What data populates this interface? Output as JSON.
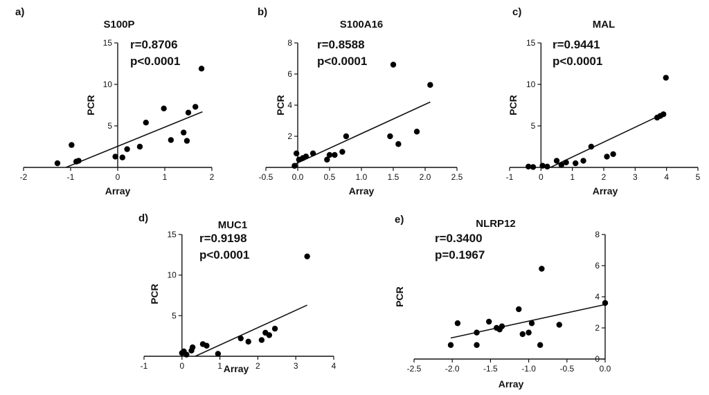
{
  "chart_data": [
    {
      "panel": "a)",
      "type": "scatter",
      "title": "S100P",
      "xlabel": "Array",
      "ylabel": "PCR",
      "annotation": [
        "r=0.8706",
        "p<0.0001"
      ],
      "xlim": [
        -2,
        2
      ],
      "ylim": [
        0,
        15
      ],
      "xticks": [
        -2,
        -1,
        0,
        1,
        2
      ],
      "yticks": [
        5,
        10,
        15
      ],
      "xtick_labels": [
        "-2",
        "-1",
        "0",
        "1",
        "2"
      ],
      "ytick_labels": [
        "5",
        "10",
        "15"
      ],
      "points": [
        [
          -1.28,
          0.5
        ],
        [
          -0.98,
          2.7
        ],
        [
          -0.88,
          0.7
        ],
        [
          -0.83,
          0.8
        ],
        [
          -0.05,
          1.3
        ],
        [
          0.1,
          1.2
        ],
        [
          0.2,
          2.2
        ],
        [
          0.47,
          2.5
        ],
        [
          0.6,
          5.4
        ],
        [
          0.98,
          7.1
        ],
        [
          1.13,
          3.3
        ],
        [
          1.4,
          4.2
        ],
        [
          1.47,
          3.2
        ],
        [
          1.5,
          6.6
        ],
        [
          1.65,
          7.3
        ],
        [
          1.78,
          11.9
        ]
      ],
      "fit_line": [
        [
          -1.1,
          0
        ],
        [
          1.8,
          6.7
        ]
      ]
    },
    {
      "panel": "b)",
      "type": "scatter",
      "title": "S100A16",
      "xlabel": "Array",
      "ylabel": "PCR",
      "annotation": [
        "r=0.8588",
        "p<0.0001"
      ],
      "xlim": [
        -0.5,
        2.5
      ],
      "ylim": [
        0,
        8
      ],
      "xticks": [
        -0.5,
        0,
        0.5,
        1,
        1.5,
        2,
        2.5
      ],
      "yticks": [
        2,
        4,
        6,
        8
      ],
      "xtick_labels": [
        "-0.5",
        "0.0",
        "0.5",
        "1.0",
        "1.5",
        "2.0",
        "2.5"
      ],
      "ytick_labels": [
        "2",
        "4",
        "6",
        "8"
      ],
      "points": [
        [
          -0.05,
          0.1
        ],
        [
          -0.02,
          0.9
        ],
        [
          0.02,
          0.5
        ],
        [
          0.08,
          0.6
        ],
        [
          0.13,
          0.7
        ],
        [
          0.24,
          0.9
        ],
        [
          0.46,
          0.5
        ],
        [
          0.5,
          0.8
        ],
        [
          0.58,
          0.8
        ],
        [
          0.7,
          1.0
        ],
        [
          0.76,
          2.0
        ],
        [
          1.45,
          2.0
        ],
        [
          1.5,
          6.6
        ],
        [
          1.58,
          1.5
        ],
        [
          1.87,
          2.3
        ],
        [
          2.08,
          5.3
        ]
      ],
      "fit_line": [
        [
          -0.05,
          0.2
        ],
        [
          2.08,
          4.2
        ]
      ]
    },
    {
      "panel": "c)",
      "type": "scatter",
      "title": "MAL",
      "xlabel": "Array",
      "ylabel": "PCR",
      "annotation": [
        "r=0.9441",
        "p<0.0001"
      ],
      "xlim": [
        -1,
        5
      ],
      "ylim": [
        0,
        15
      ],
      "xticks": [
        -1,
        0,
        1,
        2,
        3,
        4,
        5
      ],
      "yticks": [
        5,
        10,
        15
      ],
      "xtick_labels": [
        "-1",
        "0",
        "1",
        "2",
        "3",
        "4",
        "5"
      ],
      "ytick_labels": [
        "5",
        "10",
        "15"
      ],
      "points": [
        [
          -0.4,
          0.1
        ],
        [
          -0.25,
          0.05
        ],
        [
          0.05,
          0.2
        ],
        [
          0.2,
          0.1
        ],
        [
          0.5,
          0.8
        ],
        [
          0.65,
          0.3
        ],
        [
          0.8,
          0.6
        ],
        [
          1.1,
          0.5
        ],
        [
          1.35,
          0.8
        ],
        [
          1.6,
          2.5
        ],
        [
          2.1,
          1.3
        ],
        [
          2.3,
          1.6
        ],
        [
          3.7,
          6.0
        ],
        [
          3.8,
          6.2
        ],
        [
          3.9,
          6.4
        ],
        [
          3.98,
          10.8
        ]
      ],
      "fit_line": [
        [
          0.3,
          0
        ],
        [
          3.98,
          6.6
        ]
      ]
    },
    {
      "panel": "d)",
      "type": "scatter",
      "title": "MUC1",
      "xlabel": "Array",
      "ylabel": "PCR",
      "annotation": [
        "r=0.9198",
        "p<0.0001"
      ],
      "xlim": [
        -1,
        4
      ],
      "ylim": [
        0,
        15
      ],
      "xticks": [
        -1,
        0,
        1,
        2,
        3,
        4
      ],
      "yticks": [
        5,
        10,
        15
      ],
      "xtick_labels": [
        "-1",
        "0",
        "1",
        "2",
        "3",
        "4"
      ],
      "ytick_labels": [
        "5",
        "10",
        "15"
      ],
      "points": [
        [
          0.0,
          0.4
        ],
        [
          0.05,
          0.6
        ],
        [
          0.12,
          0.2
        ],
        [
          0.25,
          0.7
        ],
        [
          0.28,
          1.1
        ],
        [
          0.55,
          1.5
        ],
        [
          0.65,
          1.3
        ],
        [
          0.95,
          0.3
        ],
        [
          1.55,
          2.2
        ],
        [
          1.75,
          1.8
        ],
        [
          2.1,
          2.0
        ],
        [
          2.2,
          2.9
        ],
        [
          2.3,
          2.6
        ],
        [
          2.45,
          3.4
        ],
        [
          3.3,
          12.3
        ]
      ],
      "fit_line": [
        [
          0.35,
          0
        ],
        [
          3.3,
          6.3
        ]
      ]
    },
    {
      "panel": "e)",
      "type": "scatter",
      "title": "NLRP12",
      "xlabel": "Array",
      "ylabel": "PCR",
      "annotation": [
        "r=0.3400",
        "p=0.1967"
      ],
      "xlim": [
        -2.5,
        0
      ],
      "ylim": [
        0,
        8
      ],
      "xticks": [
        -2.5,
        -2,
        -1.5,
        -1,
        -0.5,
        0
      ],
      "yticks": [
        0,
        2,
        4,
        6,
        8
      ],
      "xtick_labels": [
        "-2.5",
        "-2.0",
        "-1.5",
        "-1.0",
        "-0.5",
        "0.0"
      ],
      "ytick_labels": [
        "0",
        "2",
        "4",
        "6",
        "8"
      ],
      "points": [
        [
          -2.02,
          0.9
        ],
        [
          -1.93,
          2.3
        ],
        [
          -1.68,
          1.7
        ],
        [
          -1.68,
          0.9
        ],
        [
          -1.52,
          2.4
        ],
        [
          -1.42,
          2.0
        ],
        [
          -1.38,
          1.9
        ],
        [
          -1.35,
          2.1
        ],
        [
          -1.13,
          3.2
        ],
        [
          -1.08,
          1.6
        ],
        [
          -1.0,
          1.7
        ],
        [
          -0.96,
          2.3
        ],
        [
          -0.85,
          0.9
        ],
        [
          -0.83,
          5.8
        ],
        [
          -0.6,
          2.2
        ],
        [
          0.0,
          3.6
        ]
      ],
      "fit_line": [
        [
          -2.02,
          1.35
        ],
        [
          0.0,
          3.5
        ]
      ]
    }
  ]
}
